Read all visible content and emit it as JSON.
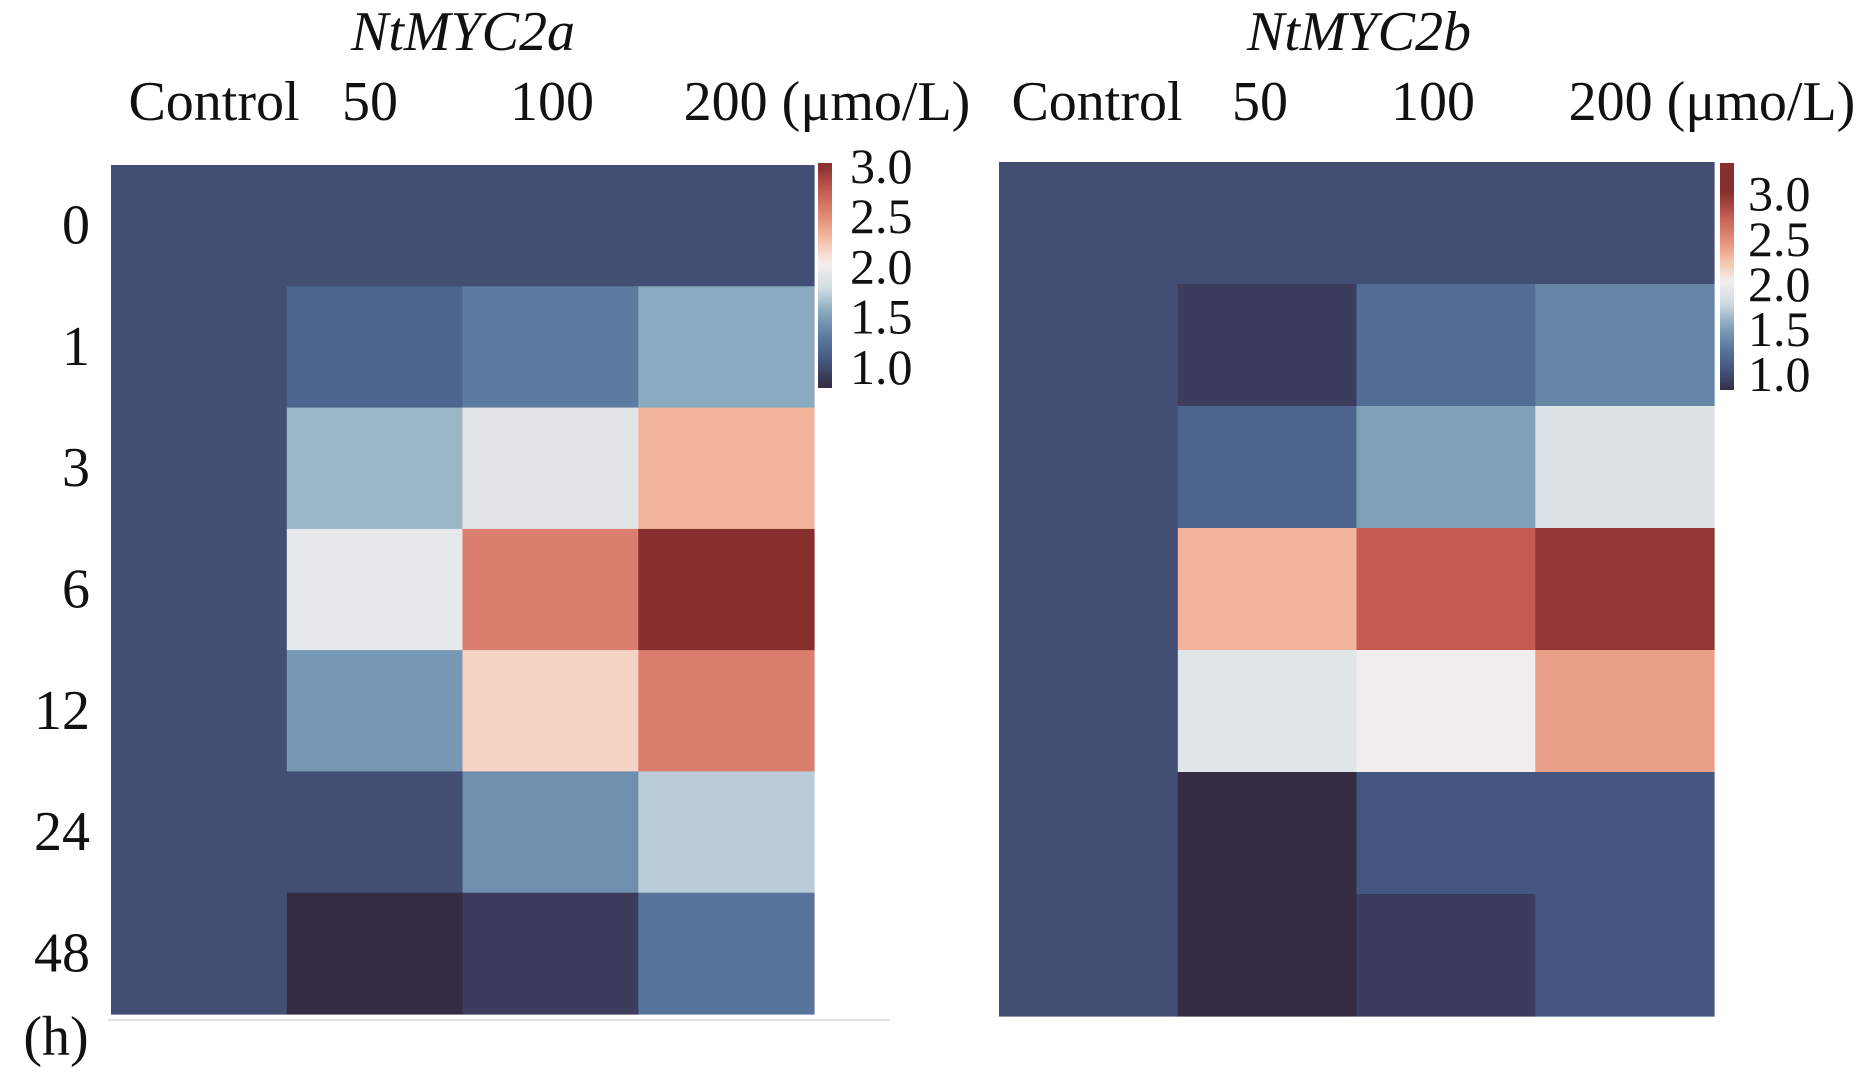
{
  "chart_data": [
    {
      "type": "heatmap",
      "title": "NtMYC2a",
      "columns": [
        "Control",
        "50",
        "100",
        "200 (μmo/L)"
      ],
      "rows": [
        "0",
        "1",
        "3",
        "6",
        "12",
        "24",
        "48"
      ],
      "row_unit_label": "(h)",
      "values": [
        [
          1.0,
          1.0,
          1.0,
          1.0
        ],
        [
          1.0,
          1.15,
          1.3,
          1.55
        ],
        [
          1.0,
          1.6,
          1.9,
          2.3
        ],
        [
          1.0,
          1.93,
          2.55,
          3.0
        ],
        [
          1.0,
          1.45,
          2.15,
          2.55
        ],
        [
          1.0,
          1.0,
          1.4,
          1.7
        ],
        [
          1.0,
          0.8,
          0.9,
          1.25
        ]
      ],
      "colorbar": {
        "ticks": [
          "1.0",
          "1.5",
          "2.0",
          "2.5",
          "3.0"
        ],
        "range": [
          0.78,
          3.02
        ]
      },
      "colormap": [
        "#352c44",
        "#45557f",
        "#5a7ba0",
        "#86a8bd",
        "#d2dde3",
        "#f4efed",
        "#f5bca3",
        "#df8672",
        "#c25a50",
        "#872e2e"
      ]
    },
    {
      "type": "heatmap",
      "title": "NtMYC2b",
      "columns": [
        "Control",
        "50",
        "100",
        "200 (μmo/L)"
      ],
      "rows": [
        "0",
        "1",
        "3",
        "6",
        "12",
        "24",
        "48"
      ],
      "values": [
        [
          1.0,
          1.0,
          1.0,
          1.0
        ],
        [
          1.0,
          0.9,
          1.2,
          1.35
        ],
        [
          1.0,
          1.15,
          1.5,
          1.85
        ],
        [
          1.0,
          2.3,
          2.75,
          2.95
        ],
        [
          1.0,
          1.88,
          2.0,
          2.4
        ],
        [
          1.0,
          0.8,
          1.05,
          1.05
        ],
        [
          1.0,
          0.8,
          0.9,
          1.05
        ]
      ],
      "colorbar": {
        "ticks": [
          "1.0",
          "1.5",
          "2.0",
          "2.5",
          "3.0"
        ],
        "range": [
          0.81,
          3.33
        ]
      },
      "colormap": [
        "#352c44",
        "#45557f",
        "#5a7ba0",
        "#86a8bd",
        "#d2dde3",
        "#f4efed",
        "#f5bca3",
        "#df8672",
        "#c25a50",
        "#872e2e"
      ]
    }
  ]
}
